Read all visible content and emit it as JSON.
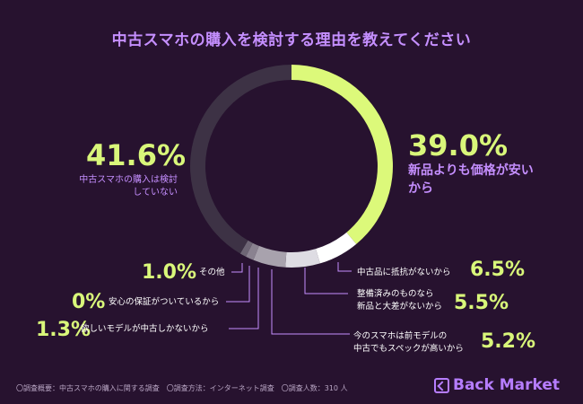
{
  "chart_data": {
    "type": "pie",
    "title": "中古スマホの購入を検討する理由を教えてください",
    "slices": [
      {
        "label": "新品よりも価格が安いから",
        "value": 39.0,
        "pct_label": "39.0%",
        "color": "#dcf97a"
      },
      {
        "label": "中古品に抵抗がないから",
        "value": 6.5,
        "pct_label": "6.5%",
        "color": "#ffffff"
      },
      {
        "label": "整備済みのものなら新品と大差がないから",
        "value": 5.5,
        "pct_label": "5.5%",
        "color": "#dedce3"
      },
      {
        "label": "今のスマホは前モデルの中古でもスペックが高いから",
        "value": 5.2,
        "pct_label": "5.2%",
        "color": "#a8a2ad"
      },
      {
        "label": "欲しいモデルが中古しかないから",
        "value": 1.3,
        "pct_label": "1.3%",
        "color": "#8a8290"
      },
      {
        "label": "安心の保証がついているから",
        "value": 0.0,
        "pct_label": "0%",
        "color": "#7a727f"
      },
      {
        "label": "その他",
        "value": 1.0,
        "pct_label": "1.0%",
        "color": "#6e6675"
      },
      {
        "label": "中古スマホの購入は検討していない",
        "value": 41.6,
        "pct_label": "41.6%",
        "color": "#3d3245"
      }
    ]
  },
  "labels": {
    "big_right_label": "新品よりも価格が安いから",
    "big_left_label": "中古スマホの購入は検討していない",
    "l_other": "その他",
    "l_warranty": "安心の保証がついているから",
    "l_onlyused": "欲しいモデルが中古しかないから",
    "l_noresist": "中古品に抵抗がないから",
    "l_refurb_line1": "整備済みのものなら",
    "l_refurb_line2": "新品と大差がないから",
    "l_spec_line1": "今のスマホは前モデルの",
    "l_spec_line2": "中古でもスペックが高いから"
  },
  "footer": "〇調査概要：中古スマホの購入に関する調査　〇調査方法：インターネット調査　〇調査人数：310 人",
  "brand": "Back Market",
  "colors": {
    "background": "#27122f",
    "accent_purple": "#c58fff",
    "accent_lime": "#d9f77a"
  }
}
